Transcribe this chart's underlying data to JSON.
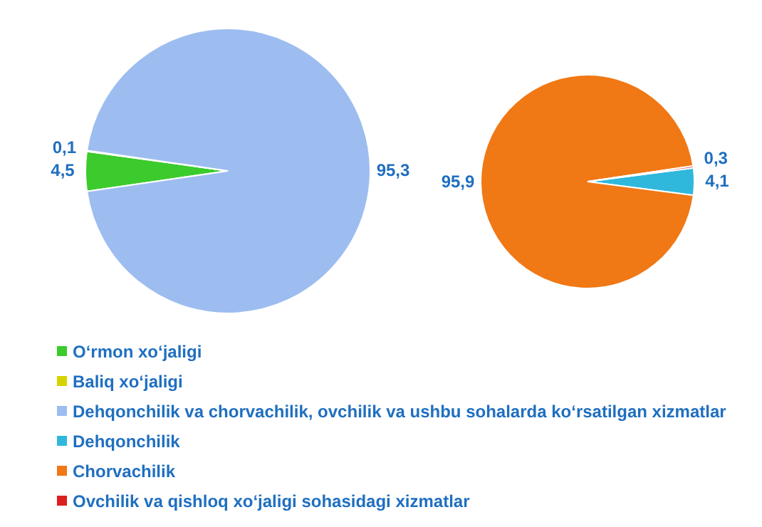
{
  "chart_data": [
    {
      "type": "pie",
      "categories": [
        "O‘rmon xo‘jaligi",
        "Baliq xo‘jaligi",
        "Dehqonchilik va chorvachilik, ovchilik va ushbu sohalarda ko‘rsatilgan xizmatlar"
      ],
      "values": [
        4.5,
        0.1,
        95.3
      ],
      "colors": [
        "#3ccb2c",
        "#d4d400",
        "#9dbdf0"
      ],
      "value_labels": [
        "4,5",
        "0,1",
        "95,3"
      ],
      "legend": "bottom"
    },
    {
      "type": "pie",
      "categories": [
        "Dehqonchilik",
        "Chorvachilik",
        "Ovchilik va qishloq xo‘jaligi sohasidagi xizmatlar"
      ],
      "values": [
        4.1,
        95.9,
        0.3
      ],
      "colors": [
        "#2fb8dc",
        "#f07815",
        "#dc2020"
      ],
      "value_labels": [
        "4,1",
        "95,9",
        "0,3"
      ],
      "legend": "bottom"
    }
  ]
}
